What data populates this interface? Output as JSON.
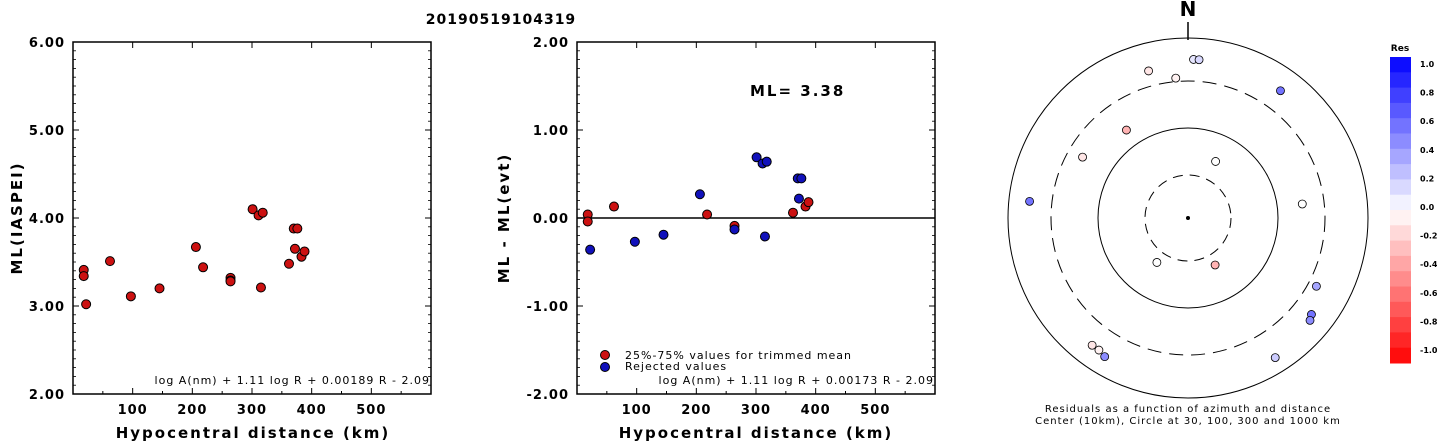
{
  "event_id": "20190519104319",
  "chart_data": [
    {
      "type": "scatter",
      "name": "ml-vs-distance",
      "ylabel": "ML(IASPEI)",
      "xlabel": "Hypocentral distance (km)",
      "xlim": [
        0,
        600
      ],
      "ylim": [
        2.0,
        6.0
      ],
      "xticks": [
        100,
        200,
        300,
        400,
        500
      ],
      "yticks": [
        "2.00",
        "3.00",
        "4.00",
        "5.00",
        "6.00"
      ],
      "formula": "log A(nm) + 1.11 log R + 0.00189 R - 2.09",
      "points": [
        {
          "x": 18,
          "y": 3.41
        },
        {
          "x": 18,
          "y": 3.34
        },
        {
          "x": 22,
          "y": 3.02
        },
        {
          "x": 62,
          "y": 3.51
        },
        {
          "x": 97,
          "y": 3.11
        },
        {
          "x": 145,
          "y": 3.2
        },
        {
          "x": 206,
          "y": 3.67
        },
        {
          "x": 218,
          "y": 3.44
        },
        {
          "x": 264,
          "y": 3.32
        },
        {
          "x": 264,
          "y": 3.29
        },
        {
          "x": 264,
          "y": 3.28
        },
        {
          "x": 301,
          "y": 4.1
        },
        {
          "x": 311,
          "y": 4.03
        },
        {
          "x": 318,
          "y": 4.06
        },
        {
          "x": 315,
          "y": 3.21
        },
        {
          "x": 362,
          "y": 3.48
        },
        {
          "x": 370,
          "y": 3.88
        },
        {
          "x": 376,
          "y": 3.88
        },
        {
          "x": 372,
          "y": 3.65
        },
        {
          "x": 383,
          "y": 3.56
        },
        {
          "x": 388,
          "y": 3.62
        }
      ]
    },
    {
      "type": "scatter",
      "name": "residual-vs-distance",
      "ylabel": "ML - ML(evt)",
      "xlabel": "Hypocentral distance (km)",
      "xlim": [
        0,
        600
      ],
      "ylim": [
        -2.0,
        2.0
      ],
      "xticks": [
        100,
        200,
        300,
        400,
        500
      ],
      "yticks": [
        "-2.00",
        "-1.00",
        "0.00",
        "1.00",
        "2.00"
      ],
      "ml_label": "ML= 3.38",
      "legend": [
        "25%-75% values for trimmed mean",
        "Rejected values"
      ],
      "formula": "log A(nm) + 1.11 log R + 0.00173 R - 2.09",
      "series": [
        {
          "name": "25%-75% values for trimmed mean",
          "color": "#cc1111",
          "points": [
            {
              "x": 18,
              "y": 0.04
            },
            {
              "x": 18,
              "y": -0.04
            },
            {
              "x": 62,
              "y": 0.13
            },
            {
              "x": 218,
              "y": 0.04
            },
            {
              "x": 264,
              "y": -0.09
            },
            {
              "x": 362,
              "y": 0.06
            },
            {
              "x": 383,
              "y": 0.13
            },
            {
              "x": 388,
              "y": 0.18
            }
          ]
        },
        {
          "name": "Rejected values",
          "color": "#1111bb",
          "points": [
            {
              "x": 22,
              "y": -0.36
            },
            {
              "x": 97,
              "y": -0.27
            },
            {
              "x": 145,
              "y": -0.19
            },
            {
              "x": 206,
              "y": 0.27
            },
            {
              "x": 264,
              "y": -0.13
            },
            {
              "x": 301,
              "y": 0.69
            },
            {
              "x": 311,
              "y": 0.62
            },
            {
              "x": 318,
              "y": 0.64
            },
            {
              "x": 315,
              "y": -0.21
            },
            {
              "x": 370,
              "y": 0.45
            },
            {
              "x": 376,
              "y": 0.45
            },
            {
              "x": 372,
              "y": 0.22
            }
          ]
        }
      ]
    },
    {
      "type": "scatter",
      "name": "azimuth-distance-polar",
      "north_label": "N",
      "caption_line1": "Residuals as a function of azimuth and distance",
      "caption_line2": "Center (10km), Circle at 30, 100, 300 and 1000 km",
      "colorbar_title": "Res",
      "colorbar_labels": [
        "1.0",
        "0.8",
        "0.6",
        "0.4",
        "0.2",
        "0.0",
        "-0.2",
        "-0.4",
        "-0.6",
        "-0.8",
        "-1.0"
      ],
      "rings_km": [
        30,
        100,
        300,
        1000
      ],
      "points": [
        {
          "azimuth": 2,
          "distance_km": 550,
          "residual": 0.1
        },
        {
          "azimuth": 4,
          "distance_km": 550,
          "residual": 0.15
        },
        {
          "azimuth": 345,
          "distance_km": 460,
          "residual": -0.1
        },
        {
          "azimuth": 355,
          "distance_km": 330,
          "residual": -0.05
        },
        {
          "azimuth": 36,
          "distance_km": 530,
          "residual": 0.55
        },
        {
          "azimuth": 325,
          "distance_km": 150,
          "residual": -0.3
        },
        {
          "azimuth": 300,
          "distance_km": 210,
          "residual": -0.1
        },
        {
          "azimuth": 276,
          "distance_km": 560,
          "residual": 0.55
        },
        {
          "azimuth": 26,
          "distance_km": 50,
          "residual": 0.0
        },
        {
          "azimuth": 83,
          "distance_km": 180,
          "residual": 0.0
        },
        {
          "azimuth": 215,
          "distance_km": 40,
          "residual": 0.0
        },
        {
          "azimuth": 150,
          "distance_km": 40,
          "residual": -0.3
        },
        {
          "azimuth": 118,
          "distance_km": 380,
          "residual": 0.35
        },
        {
          "azimuth": 128,
          "distance_km": 520,
          "residual": 0.55
        },
        {
          "azimuth": 130,
          "distance_km": 560,
          "residual": 0.45
        },
        {
          "azimuth": 148,
          "distance_km": 650,
          "residual": 0.2
        },
        {
          "azimuth": 217,
          "distance_km": 560,
          "residual": -0.1
        },
        {
          "azimuth": 214,
          "distance_km": 560,
          "residual": -0.05
        },
        {
          "azimuth": 211,
          "distance_km": 600,
          "residual": 0.45
        }
      ]
    }
  ]
}
